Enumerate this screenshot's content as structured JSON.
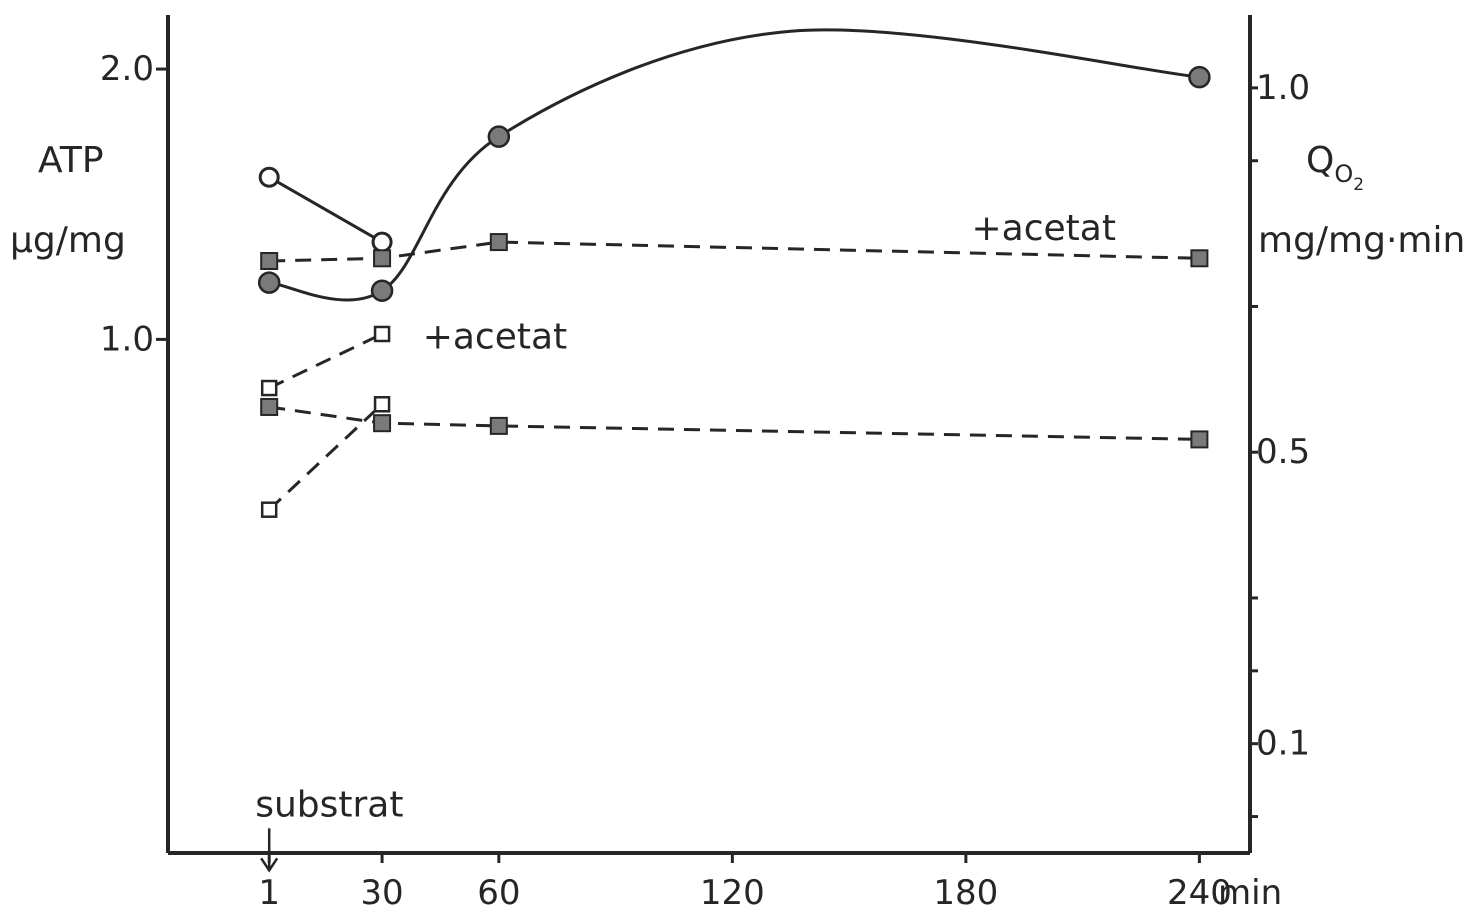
{
  "chart_data": {
    "type": "line",
    "x_unit": "min",
    "x_ticks": [
      1,
      30,
      60,
      120,
      180,
      240
    ],
    "xlim": [
      -25,
      253
    ],
    "left_axis": {
      "label": "ATP",
      "unit": "µg/mg",
      "ylim": [
        -0.9,
        2.2
      ],
      "tick_labels": [
        {
          "value": 2.0,
          "text": "2.0"
        },
        {
          "value": 1.0,
          "text": "1.0"
        }
      ]
    },
    "right_axis": {
      "label_main": "Q",
      "label_sub1": "O",
      "label_sub2": "2",
      "unit": "mg/mg·min",
      "ylim": [
        -0.05,
        1.1
      ],
      "tick_labels": [
        {
          "value": 1.0,
          "text": "1.0"
        },
        {
          "value": 0.5,
          "text": "0.5"
        },
        {
          "value": 0.1,
          "text": "0.1"
        }
      ],
      "minor_ticks": [
        0.9,
        0.7,
        0.3,
        0.2,
        0.0
      ]
    },
    "series": [
      {
        "axis": "left",
        "style": "solid",
        "marker": "open-circle",
        "x": [
          1,
          30
        ],
        "y": [
          1.6,
          1.36
        ]
      },
      {
        "axis": "left",
        "style": "solid-smooth",
        "marker": "filled-circle",
        "x": [
          1,
          30,
          60,
          240
        ],
        "y": [
          1.21,
          1.18,
          1.75,
          1.97
        ],
        "curve_peak": {
          "x": 135,
          "y": 2.14
        }
      },
      {
        "axis": "left",
        "style": "dashed",
        "marker": "filled-square",
        "x": [
          1,
          30,
          60,
          240
        ],
        "y": [
          1.29,
          1.3,
          1.36,
          1.3
        ]
      },
      {
        "axis": "left",
        "style": "dashed",
        "marker": "open-square",
        "x": [
          1,
          30
        ],
        "y": [
          0.82,
          1.02
        ]
      },
      {
        "axis": "left",
        "style": "dashed",
        "marker": "open-square",
        "x": [
          1,
          30
        ],
        "y": [
          0.37,
          0.76
        ]
      },
      {
        "axis": "left",
        "style": "dashed",
        "marker": "filled-square",
        "x": [
          1,
          30,
          60,
          240
        ],
        "y": [
          0.75,
          0.69,
          0.68,
          0.63
        ]
      }
    ],
    "annotations": [
      {
        "text": "+acetat",
        "x": 200,
        "y": 1.36
      },
      {
        "text": "+acetat",
        "x": 59,
        "y": 1.01
      },
      {
        "text": "substrat",
        "x": 1,
        "y": -0.72
      }
    ],
    "colors": {
      "ink": "#262626",
      "marker_fill": "#7a7a7a"
    }
  }
}
